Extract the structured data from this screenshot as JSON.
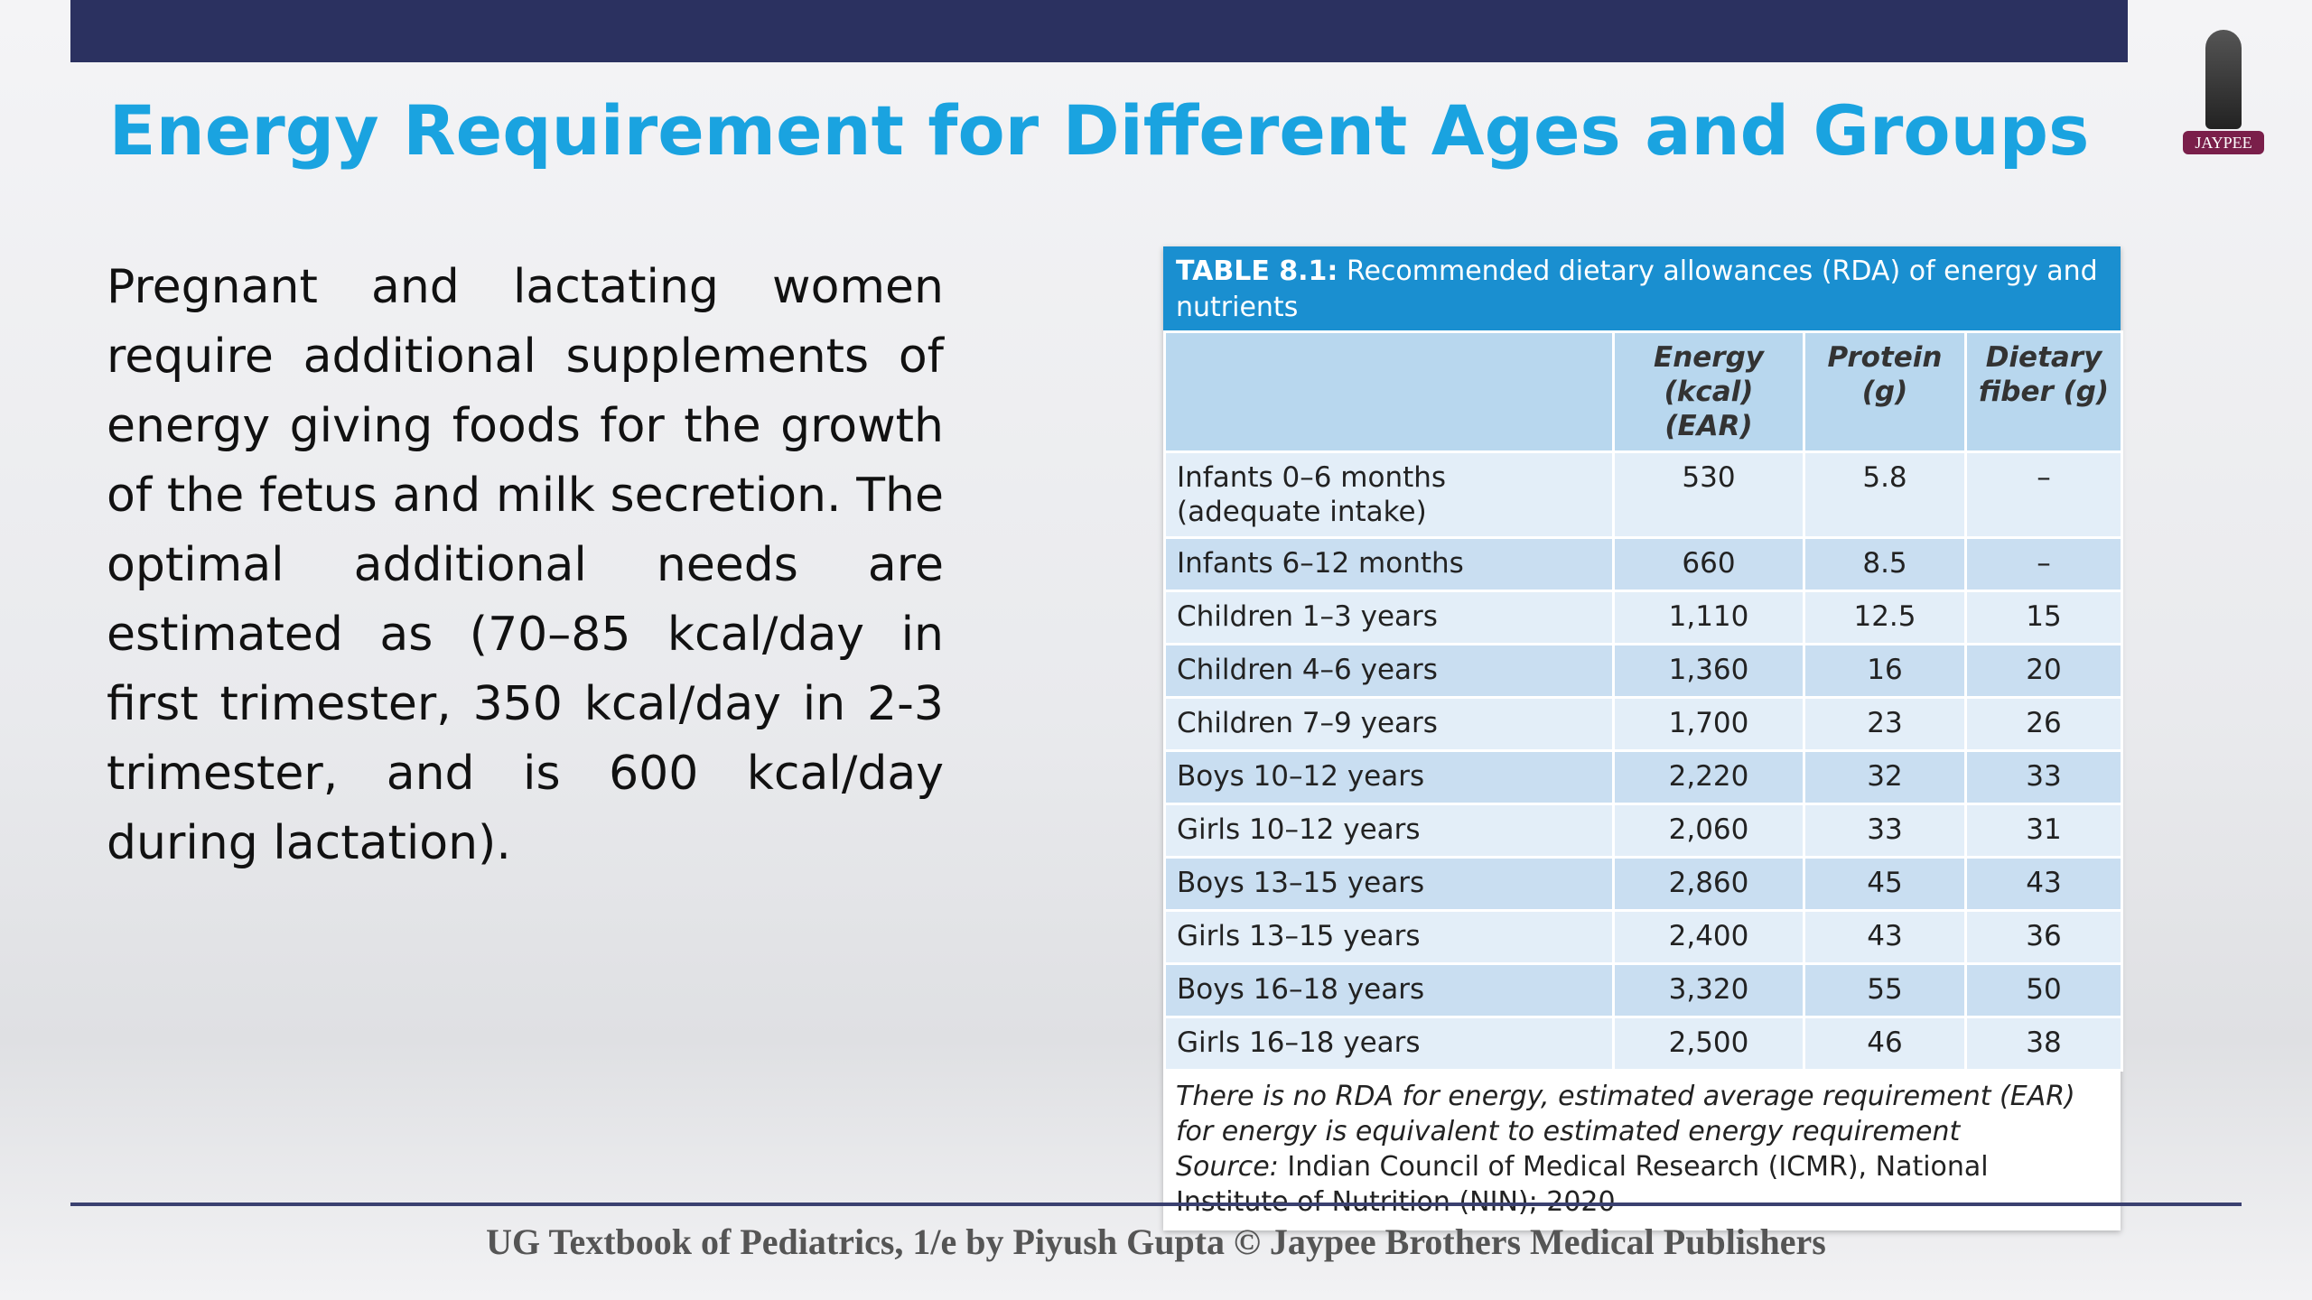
{
  "header": {
    "title": "Energy Requirement for Different Ages and Groups",
    "logo": "JAYPEE"
  },
  "body": {
    "paragraph": "Pregnant and lactating women require additional supplements of energy giving foods for the growth of the fetus and milk secretion. The optimal additional needs are estimated as (70–85 kcal/day in first trimester, 350 kcal/day in 2-3 trimester, and is 600 kcal/day during lactation)."
  },
  "table": {
    "caption_label": "TABLE 8.1:",
    "caption": "Recommended dietary allowances (RDA) of energy and nutrients",
    "columns": [
      "Energy\n(kcal) (EAR)",
      "Protein\n(g)",
      "Dietary\nfiber (g)"
    ],
    "rows": [
      [
        "Infants 0–6 months\n(adequate intake)",
        "530",
        "5.8",
        "–"
      ],
      [
        "Infants 6–12 months",
        "660",
        "8.5",
        "–"
      ],
      [
        "Children 1–3 years",
        "1,110",
        "12.5",
        "15"
      ],
      [
        "Children 4–6 years",
        "1,360",
        "16",
        "20"
      ],
      [
        "Children 7–9 years",
        "1,700",
        "23",
        "26"
      ],
      [
        "Boys 10–12 years",
        "2,220",
        "32",
        "33"
      ],
      [
        "Girls 10–12 years",
        "2,060",
        "33",
        "31"
      ],
      [
        "Boys 13–15 years",
        "2,860",
        "45",
        "43"
      ],
      [
        "Girls 13–15 years",
        "2,400",
        "43",
        "36"
      ],
      [
        "Boys 16–18 years",
        "3,320",
        "55",
        "50"
      ],
      [
        "Girls 16–18 years",
        "2,500",
        "46",
        "38"
      ]
    ],
    "note": "There is no RDA for energy, estimated average requirement (EAR) for energy is equivalent to estimated energy requirement",
    "source_label": "Source:",
    "source": "Indian Council of Medical Research (ICMR), National Institute of Nutrition (NIN); 2020"
  },
  "footer": {
    "text": "UG Textbook of Pediatrics, 1/e by Piyush Gupta © Jaypee Brothers Medical Publishers"
  }
}
